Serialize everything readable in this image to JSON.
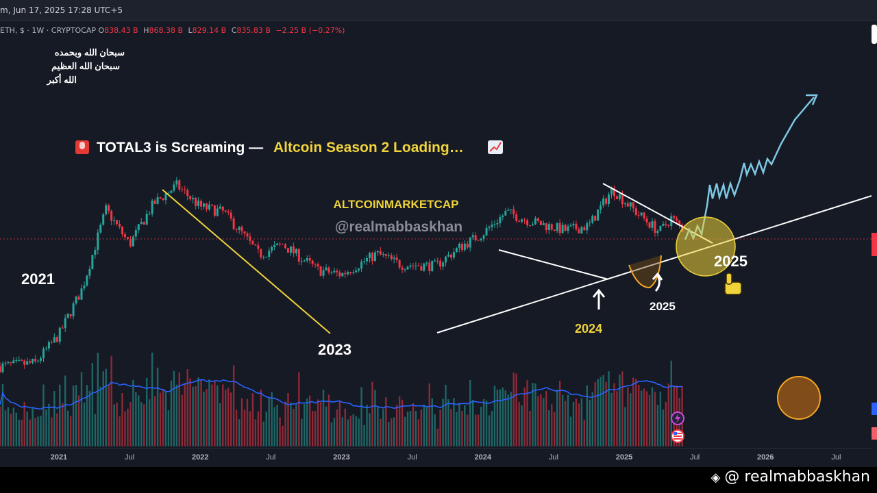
{
  "topbar": {
    "timestamp_text": "m, Jun 17, 2025 17:28 UTC+5"
  },
  "legend": {
    "symbol": "ETH, $ · 1W · CRYPTOCAP",
    "open_label": "O",
    "open": "838.43 B",
    "high_label": "H",
    "high": "868.38 B",
    "low_label": "L",
    "low": "829.14 B",
    "close_label": "C",
    "close": "835.83 B",
    "change": "−2.25 B (−0.27%)"
  },
  "arabic_lines": [
    "سبحان الله وبحمده",
    "سبحان الله العظيم",
    "الله أكبر"
  ],
  "headline": {
    "siren_icon": "police-light-icon",
    "part1": "TOTAL3 is Screaming —",
    "part2": "Altcoin Season 2 Loading…",
    "chart_icon": "chart-up-icon"
  },
  "watermark_top": "ALTCOINMARKETCAP",
  "watermark_handle": "@realmabbaskhan",
  "bottom_watermark": {
    "icon": "binance-logo-icon",
    "text": "@ realmabbaskhan"
  },
  "annotations": {
    "y2021": "2021",
    "y2023": "2023",
    "y2024": "2024",
    "y2025_small": "2025",
    "y2025_big": "2025"
  },
  "colors": {
    "background": "#161a25",
    "up": "#26a69a",
    "down": "#f23645",
    "volume_ma": "#2962ff",
    "downtrend_line": "#f0d33a",
    "projection": "#7ec8e3",
    "accent_yellow": "#f0d33a",
    "bowl": "#f5a623"
  },
  "chart_data": {
    "type": "candlestick",
    "series_name": "TOTAL3 weekly",
    "x_tick_labels": [
      "2021",
      "Jul",
      "2022",
      "Jul",
      "2023",
      "Jul",
      "2024",
      "Jul",
      "2025",
      "Jul",
      "2026",
      "Jul"
    ],
    "x_range": [
      "2020-08",
      "2026-10"
    ],
    "y_unit": "B USD",
    "last_close_b": 835.83,
    "price_path_b": [
      [
        "2020-08",
        90
      ],
      [
        "2020-11",
        95
      ],
      [
        "2021-01",
        150
      ],
      [
        "2021-03",
        320
      ],
      [
        "2021-05",
        1150
      ],
      [
        "2021-07",
        650
      ],
      [
        "2021-09",
        1250
      ],
      [
        "2021-11",
        1700
      ],
      [
        "2022-01",
        1200
      ],
      [
        "2022-03",
        1100
      ],
      [
        "2022-05",
        700
      ],
      [
        "2022-06",
        550
      ],
      [
        "2022-08",
        650
      ],
      [
        "2022-11",
        430
      ],
      [
        "2023-01",
        400
      ],
      [
        "2023-04",
        560
      ],
      [
        "2023-06",
        470
      ],
      [
        "2023-09",
        460
      ],
      [
        "2023-11",
        620
      ],
      [
        "2024-01",
        780
      ],
      [
        "2024-03",
        1100
      ],
      [
        "2024-05",
        950
      ],
      [
        "2024-08",
        820
      ],
      [
        "2024-10",
        880
      ],
      [
        "2024-12",
        1600
      ],
      [
        "2025-02",
        1100
      ],
      [
        "2025-04",
        800
      ],
      [
        "2025-05",
        1000
      ],
      [
        "2025-06",
        836
      ]
    ],
    "volume_ma_trend": "rises into 2021 peak, declines through 2023, rises into 2025",
    "grid": false
  }
}
